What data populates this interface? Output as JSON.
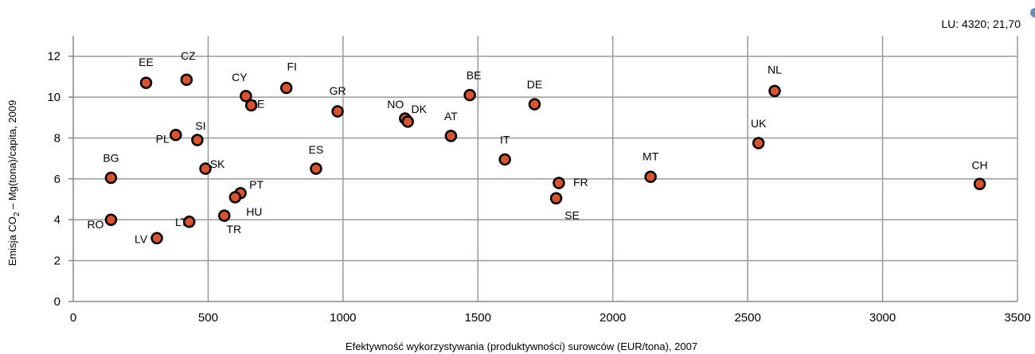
{
  "chart_data": {
    "type": "scatter",
    "xlabel": "Efektywność wykorzystywania (produktywności) surowców (EUR/tona), 2007",
    "ylabel_parts": [
      "Emisja CO",
      "2",
      " – Mg(tona)/capita, 2009"
    ],
    "xlim": [
      0,
      3500
    ],
    "ylim": [
      0,
      13
    ],
    "x_ticks": [
      0,
      500,
      1000,
      1500,
      2000,
      2500,
      3000,
      3500
    ],
    "y_ticks": [
      0,
      2,
      4,
      6,
      8,
      10,
      12
    ],
    "grid": true,
    "marker_color": "#d9532c",
    "marker_edge": "#000000",
    "annotation": "LU: 4320; 21,70",
    "points": [
      {
        "label": "EE",
        "x": 270,
        "y": 10.7
      },
      {
        "label": "CZ",
        "x": 420,
        "y": 10.85
      },
      {
        "label": "CY",
        "x": 640,
        "y": 10.05
      },
      {
        "label": "IE",
        "x": 660,
        "y": 9.6
      },
      {
        "label": "FI",
        "x": 790,
        "y": 10.45
      },
      {
        "label": "GR",
        "x": 980,
        "y": 9.3
      },
      {
        "label": "NO",
        "x": 1230,
        "y": 8.95
      },
      {
        "label": "DK",
        "x": 1240,
        "y": 8.8
      },
      {
        "label": "BE",
        "x": 1470,
        "y": 10.1
      },
      {
        "label": "DE",
        "x": 1710,
        "y": 9.65
      },
      {
        "label": "NL",
        "x": 2600,
        "y": 10.3
      },
      {
        "label": "PL",
        "x": 380,
        "y": 8.15
      },
      {
        "label": "SI",
        "x": 460,
        "y": 7.9
      },
      {
        "label": "AT",
        "x": 1400,
        "y": 8.1
      },
      {
        "label": "UK",
        "x": 2540,
        "y": 7.75
      },
      {
        "label": "IT",
        "x": 1600,
        "y": 6.95
      },
      {
        "label": "BG",
        "x": 140,
        "y": 6.05
      },
      {
        "label": "SK",
        "x": 490,
        "y": 6.5
      },
      {
        "label": "ES",
        "x": 900,
        "y": 6.5
      },
      {
        "label": "MT",
        "x": 2140,
        "y": 6.1
      },
      {
        "label": "CH",
        "x": 3360,
        "y": 5.75
      },
      {
        "label": "FR",
        "x": 1800,
        "y": 5.8
      },
      {
        "label": "PT",
        "x": 620,
        "y": 5.3
      },
      {
        "label": "HU",
        "x": 600,
        "y": 5.1
      },
      {
        "label": "SE",
        "x": 1790,
        "y": 5.05
      },
      {
        "label": "RO",
        "x": 140,
        "y": 4.0
      },
      {
        "label": "LT",
        "x": 430,
        "y": 3.9
      },
      {
        "label": "TR",
        "x": 560,
        "y": 4.2
      },
      {
        "label": "LV",
        "x": 310,
        "y": 3.1
      }
    ]
  }
}
